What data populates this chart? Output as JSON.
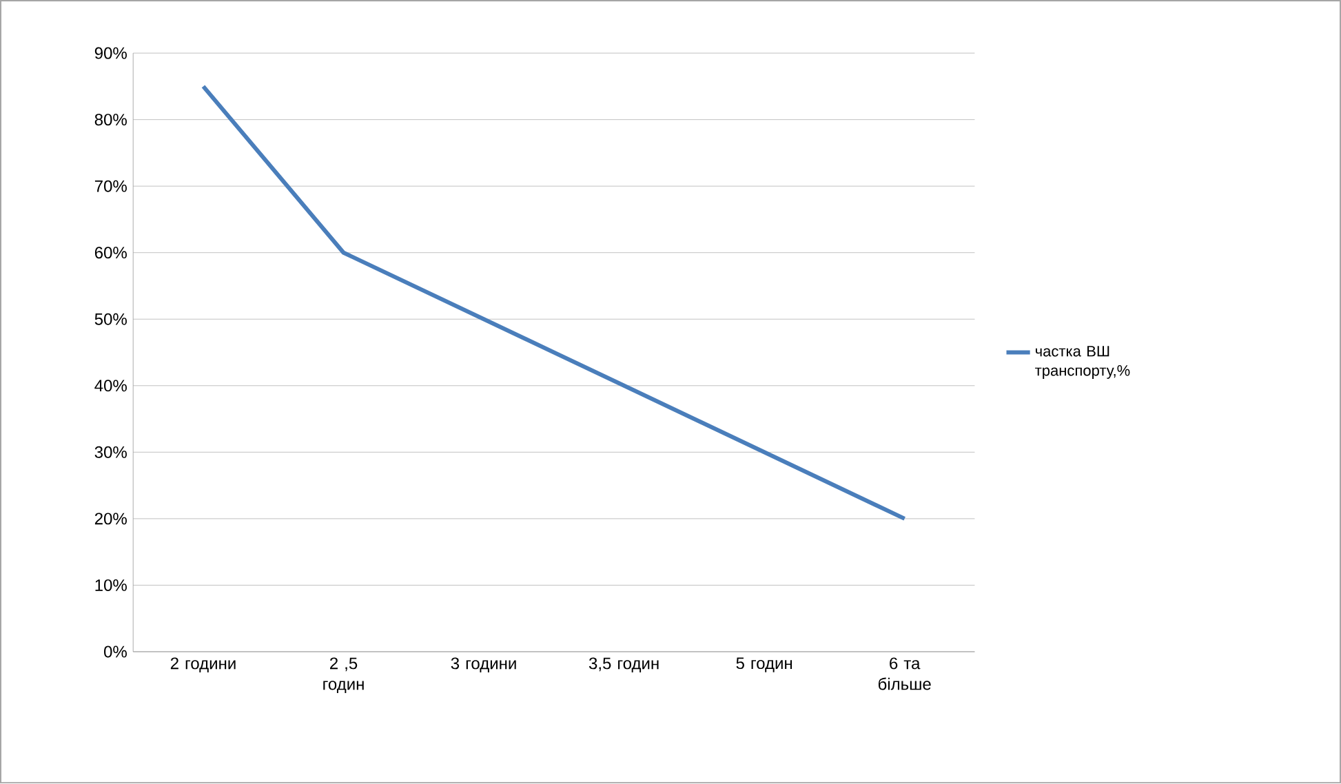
{
  "chart_data": {
    "type": "line",
    "categories": [
      "2 години",
      "2 ,5 годин",
      "3 години",
      "3,5 годин",
      "5 годин",
      "6 та більше"
    ],
    "series": [
      {
        "name": "частка ВШ транспорту,%",
        "color": "#4a7ebb",
        "values": [
          85,
          60,
          50,
          40,
          30,
          20
        ]
      }
    ],
    "ylim": [
      0,
      90
    ],
    "yticks": [
      {
        "value": 0,
        "label": "0%"
      },
      {
        "value": 10,
        "label": "10%"
      },
      {
        "value": 20,
        "label": "20%"
      },
      {
        "value": 30,
        "label": "30%"
      },
      {
        "value": 40,
        "label": "40%"
      },
      {
        "value": 50,
        "label": "50%"
      },
      {
        "value": 60,
        "label": "60%"
      },
      {
        "value": 70,
        "label": "70%"
      },
      {
        "value": 80,
        "label": "80%"
      },
      {
        "value": 90,
        "label": "90%"
      }
    ],
    "grid": "y",
    "legend": "right",
    "marker": "none",
    "line_style": "solid"
  }
}
